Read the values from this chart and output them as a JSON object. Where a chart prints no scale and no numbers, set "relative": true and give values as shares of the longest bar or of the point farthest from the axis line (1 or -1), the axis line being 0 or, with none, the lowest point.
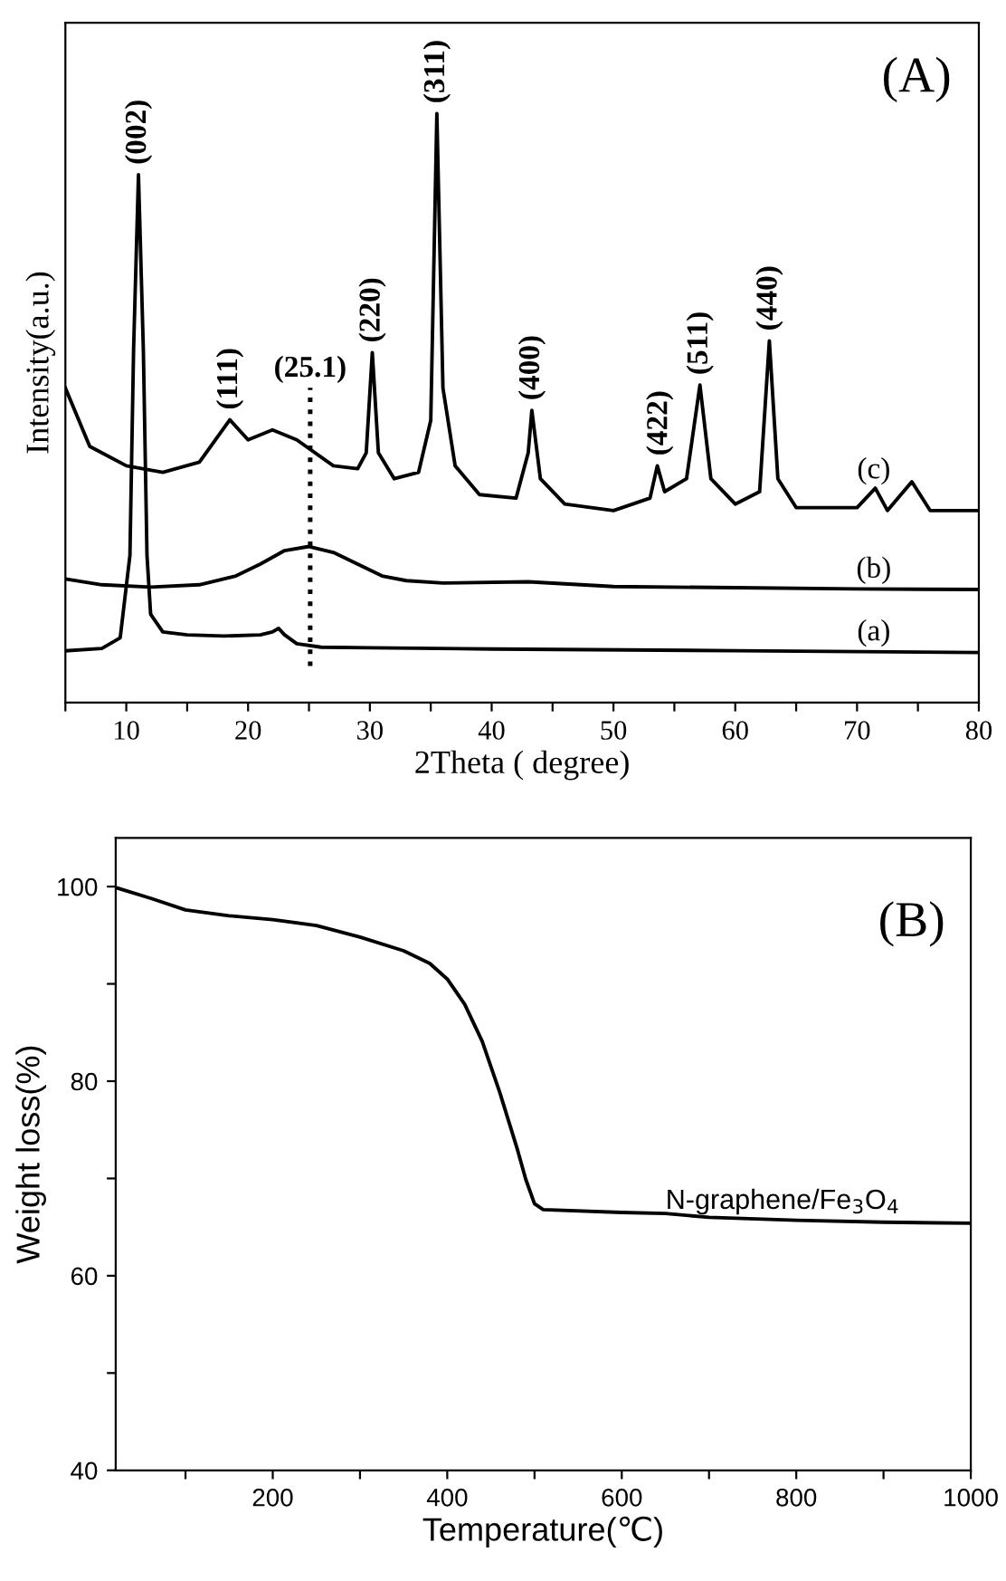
{
  "chart_data": [
    {
      "type": "line",
      "relative": true,
      "xlabel": "2Theta ( degree)",
      "ylabel": "Intensity(a.u.)",
      "xlim": [
        5,
        80
      ],
      "xticks": [
        {
          "value": 5,
          "label": null
        },
        10,
        {
          "value": 15,
          "label": null
        },
        20,
        {
          "value": 25,
          "label": null
        },
        30,
        {
          "value": 35,
          "label": null
        },
        40,
        {
          "value": 45,
          "label": null
        },
        50,
        {
          "value": 55,
          "label": null
        },
        60,
        {
          "value": 65,
          "label": null
        },
        70,
        {
          "value": 75,
          "label": null
        },
        80
      ],
      "series": [
        {
          "name": "(a)",
          "color": "#000000",
          "x": [
            5,
            8,
            9.5,
            10.3,
            10.6,
            11,
            11.4,
            11.7,
            12,
            13,
            15,
            18,
            21,
            22,
            22.5,
            23,
            24,
            26,
            30,
            40,
            60,
            80
          ],
          "values": [
            0.088,
            0.092,
            0.11,
            0.25,
            0.6,
            0.896,
            0.6,
            0.25,
            0.15,
            0.12,
            0.115,
            0.113,
            0.115,
            0.12,
            0.126,
            0.115,
            0.1,
            0.094,
            0.093,
            0.091,
            0.088,
            0.085
          ]
        },
        {
          "name": "(b)",
          "color": "#000000",
          "x": [
            5,
            8,
            12,
            16,
            19,
            21,
            23,
            25,
            27,
            29,
            31,
            33,
            36,
            43,
            50,
            60,
            70,
            80
          ],
          "values": [
            0.21,
            0.2,
            0.196,
            0.2,
            0.215,
            0.235,
            0.258,
            0.265,
            0.255,
            0.235,
            0.215,
            0.207,
            0.203,
            0.205,
            0.197,
            0.195,
            0.193,
            0.192
          ]
        },
        {
          "name": "(c)",
          "color": "#000000",
          "x": [
            5,
            7,
            10,
            13,
            16,
            18.5,
            20,
            22,
            24,
            27,
            29,
            29.7,
            30.2,
            30.7,
            32,
            34,
            35,
            35.5,
            36,
            37,
            39,
            42,
            43,
            43.3,
            44,
            46,
            50,
            53,
            53.6,
            54.2,
            56,
            57.1,
            58,
            60,
            62,
            62.8,
            63.5,
            65,
            70,
            71.5,
            72.5,
            74.5,
            76,
            80
          ],
          "values": [
            0.534,
            0.435,
            0.402,
            0.391,
            0.408,
            0.48,
            0.446,
            0.463,
            0.446,
            0.402,
            0.397,
            0.424,
            0.594,
            0.424,
            0.38,
            0.391,
            0.479,
            1.0,
            0.534,
            0.402,
            0.353,
            0.347,
            0.424,
            0.496,
            0.38,
            0.337,
            0.326,
            0.347,
            0.402,
            0.358,
            0.38,
            0.539,
            0.38,
            0.337,
            0.358,
            0.614,
            0.38,
            0.331,
            0.331,
            0.364,
            0.326,
            0.375,
            0.326,
            0.326
          ]
        }
      ],
      "ref_lines": [
        {
          "axis": "x",
          "value": 25.1,
          "label": "(25.1)",
          "line_style": "dotted",
          "color": "#000000"
        }
      ],
      "annotations": [
        "(A)",
        {
          "text": "(002)",
          "x": 11,
          "y": 0.896
        },
        {
          "text": "(111)",
          "x": 18.5,
          "y": 0.48
        },
        {
          "text": "(220)",
          "x": 30.2,
          "y": 0.594
        },
        {
          "text": "(311)",
          "x": 35.5,
          "y": 1.0
        },
        {
          "text": "(400)",
          "x": 43.3,
          "y": 0.496
        },
        {
          "text": "(422)",
          "x": 53.8,
          "y": 0.402
        },
        {
          "text": "(511)",
          "x": 57.1,
          "y": 0.539
        },
        {
          "text": "(440)",
          "x": 62.8,
          "y": 0.614
        }
      ]
    },
    {
      "type": "line",
      "xlabel": "Temperature(℃)",
      "ylabel": "Weight loss(%)",
      "xlim": [
        20,
        1000
      ],
      "ylim": [
        40,
        105
      ],
      "xticks": [
        {
          "value": 100,
          "label": null
        },
        200,
        {
          "value": 300,
          "label": null
        },
        400,
        {
          "value": 500,
          "label": null
        },
        600,
        {
          "value": 700,
          "label": null
        },
        800,
        {
          "value": 900,
          "label": null
        },
        1000
      ],
      "yticks": [
        40,
        {
          "value": 50,
          "label": null
        },
        60,
        {
          "value": 70,
          "label": null
        },
        80,
        {
          "value": 90,
          "label": null
        },
        100
      ],
      "series": [
        {
          "name": "N-graphene/Fe$_{3}$O$_{4}$",
          "color": "#000000",
          "x": [
            20,
            60,
            100,
            150,
            200,
            250,
            300,
            350,
            380,
            400,
            420,
            440,
            460,
            480,
            490,
            500,
            510,
            600,
            650,
            700,
            800,
            900,
            1000
          ],
          "values": [
            99.9,
            98.8,
            97.6,
            97.0,
            96.6,
            96.0,
            94.8,
            93.4,
            92.1,
            90.5,
            87.9,
            84.1,
            78.9,
            73.1,
            69.9,
            67.4,
            66.8,
            66.5,
            66.4,
            66.0,
            65.7,
            65.5,
            65.4
          ]
        }
      ],
      "annotations": [
        "(B)"
      ]
    }
  ]
}
